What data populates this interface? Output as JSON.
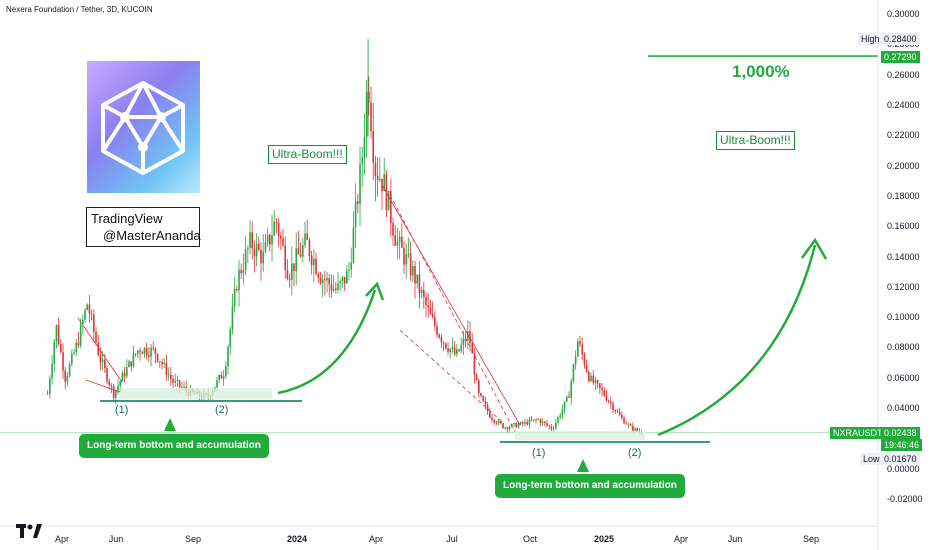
{
  "header": {
    "title": "Nexera Foundation / Tether, 3D, KUCOIN"
  },
  "watermark": {
    "line1": "TradingView",
    "line2": "@MasterAnanda"
  },
  "annotations": {
    "ultra_boom_left": "Ultra-Boom!!!",
    "ultra_boom_right": "Ultra-Boom!!!",
    "target_pct": "1,000%",
    "bottom_left_callout": "Long-term bottom and accumulation",
    "bottom_right_callout": "Long-term bottom and accumulation",
    "marker_1": "(1)",
    "marker_2": "(2)"
  },
  "price_scale": {
    "high_label": "High",
    "high_value": "0.28400",
    "target_value": "0.27290",
    "symbol": "NXRAUSDT",
    "last_price": "0.02438",
    "countdown": "19:46:46",
    "low_label": "Low",
    "low_value": "0.01670"
  },
  "colors": {
    "up": "#26a843",
    "down": "#e0303a",
    "accent": "#22ab3c",
    "support": "#1d8a6e"
  },
  "chart_data": {
    "type": "candlestick",
    "title": "Nexera Foundation / Tether, 3D, KUCOIN",
    "symbol": "NXRAUSDT",
    "y_ticks": [
      "0.30000",
      "0.28000",
      "0.26000",
      "0.24000",
      "0.22000",
      "0.20000",
      "0.18000",
      "0.16000",
      "0.14000",
      "0.12000",
      "0.10000",
      "0.08000",
      "0.06000",
      "0.04000",
      "0.02000",
      "0.00000",
      "-0.02000"
    ],
    "x_ticks": [
      "Apr",
      "Jun",
      "Sep",
      "2024",
      "Apr",
      "Jul",
      "Oct",
      "2025",
      "Apr",
      "Jun",
      "Sep"
    ],
    "x_ticks_bold": [
      "2024",
      "2025"
    ],
    "ylim": [
      -0.028,
      0.305
    ],
    "high": 0.284,
    "low": 0.0167,
    "last": 0.02438,
    "target": 0.2729,
    "price_path": [
      [
        "2023-03-15",
        0.05
      ],
      [
        "2023-03-25",
        0.095
      ],
      [
        "2023-04-05",
        0.06
      ],
      [
        "2023-04-20",
        0.085
      ],
      [
        "2023-05-01",
        0.11
      ],
      [
        "2023-05-15",
        0.075
      ],
      [
        "2023-06-01",
        0.05
      ],
      [
        "2023-06-15",
        0.065
      ],
      [
        "2023-07-01",
        0.08
      ],
      [
        "2023-07-20",
        0.078
      ],
      [
        "2023-08-10",
        0.058
      ],
      [
        "2023-09-01",
        0.05
      ],
      [
        "2023-09-20",
        0.048
      ],
      [
        "2023-10-10",
        0.065
      ],
      [
        "2023-10-25",
        0.125
      ],
      [
        "2023-11-10",
        0.15
      ],
      [
        "2023-11-25",
        0.14
      ],
      [
        "2023-12-10",
        0.165
      ],
      [
        "2023-12-25",
        0.13
      ],
      [
        "2024-01-15",
        0.15
      ],
      [
        "2024-02-01",
        0.128
      ],
      [
        "2024-02-20",
        0.118
      ],
      [
        "2024-03-05",
        0.13
      ],
      [
        "2024-03-20",
        0.2
      ],
      [
        "2024-03-28",
        0.26
      ],
      [
        "2024-04-05",
        0.2
      ],
      [
        "2024-04-15",
        0.19
      ],
      [
        "2024-05-01",
        0.15
      ],
      [
        "2024-05-20",
        0.13
      ],
      [
        "2024-06-10",
        0.1
      ],
      [
        "2024-06-25",
        0.085
      ],
      [
        "2024-07-10",
        0.075
      ],
      [
        "2024-07-25",
        0.09
      ],
      [
        "2024-08-05",
        0.05
      ],
      [
        "2024-08-20",
        0.035
      ],
      [
        "2024-09-05",
        0.028
      ],
      [
        "2024-09-25",
        0.03
      ],
      [
        "2024-10-15",
        0.033
      ],
      [
        "2024-11-01",
        0.027
      ],
      [
        "2024-11-20",
        0.048
      ],
      [
        "2024-12-01",
        0.085
      ],
      [
        "2024-12-15",
        0.06
      ],
      [
        "2025-01-01",
        0.05
      ],
      [
        "2025-01-20",
        0.035
      ],
      [
        "2025-02-01",
        0.028
      ],
      [
        "2025-02-15",
        0.024
      ]
    ]
  }
}
